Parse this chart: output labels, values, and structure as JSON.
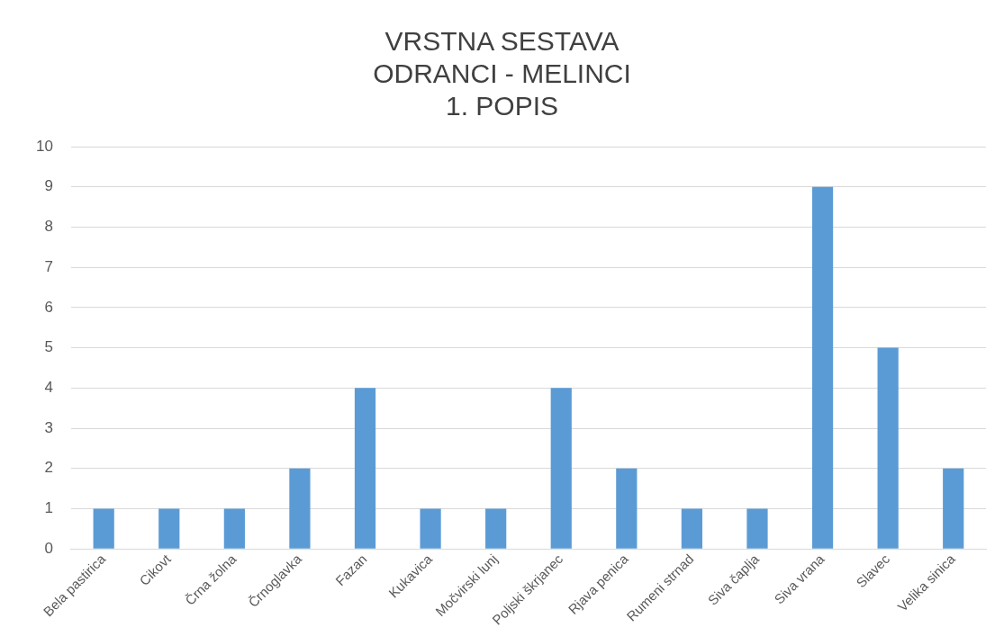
{
  "chart_data": {
    "type": "bar",
    "title": "VRSTNA SESTAVA\nODRANCI - MELINCI\n1. POPIS",
    "categories": [
      "Bela pastirica",
      "Cikovt",
      "Črna žolna",
      "Črnoglavka",
      "Fazan",
      "Kukavica",
      "Močvirski lunj",
      "Poljski škrjanec",
      "Rjava penica",
      "Rumeni strnad",
      "Siva čaplja",
      "Siva vrana",
      "Slavec",
      "Velika sinica"
    ],
    "values": [
      1,
      1,
      1,
      2,
      4,
      1,
      1,
      4,
      2,
      1,
      1,
      9,
      5,
      2
    ],
    "color": "#5b9bd5",
    "ylim": [
      0,
      10
    ],
    "yticks": [
      0,
      1,
      2,
      3,
      4,
      5,
      6,
      7,
      8,
      9,
      10
    ],
    "grid": "y",
    "legend": false
  }
}
